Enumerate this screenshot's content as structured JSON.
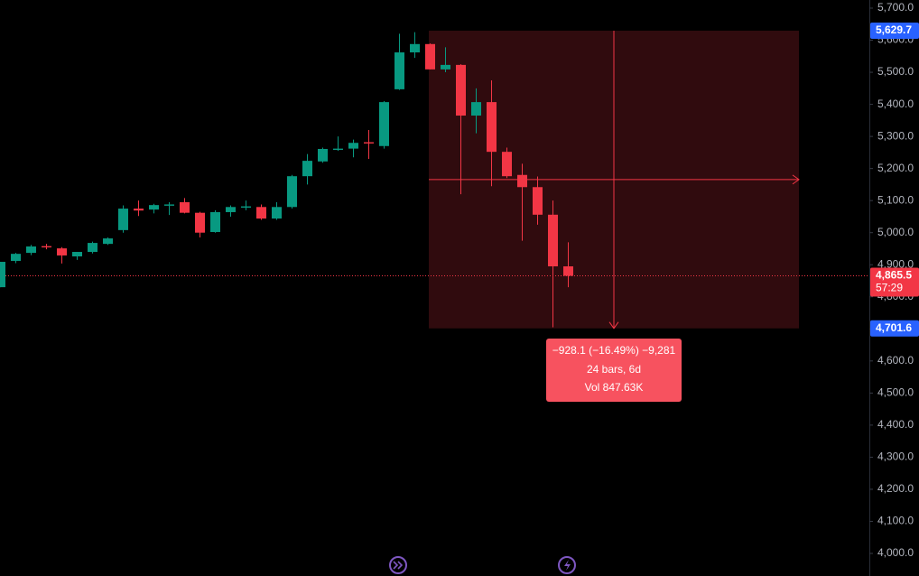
{
  "chart_data": {
    "type": "candlestick",
    "open": [
      4830,
      4912,
      4937,
      4958,
      4951,
      4926,
      4940,
      4965,
      5008,
      5075,
      5072,
      5084,
      5095,
      5062,
      5002,
      5064,
      5078,
      5080,
      5044,
      5080,
      5176,
      5222,
      5258,
      5262,
      5282,
      5270,
      5447,
      5562,
      5588,
      5509,
      5523,
      5365,
      5407,
      5252,
      5180,
      5142,
      5056,
      4895
    ],
    "high": [
      4909,
      4937,
      4962,
      4965,
      4955,
      4940,
      4972,
      4985,
      5085,
      5100,
      5090,
      5095,
      5108,
      5065,
      5070,
      5085,
      5100,
      5088,
      5095,
      5180,
      5245,
      5265,
      5300,
      5290,
      5320,
      5410,
      5620,
      5625,
      5590,
      5578,
      5525,
      5450,
      5475,
      5265,
      5215,
      5175,
      5100,
      4970
    ],
    "low": [
      4830,
      4905,
      4930,
      4948,
      4904,
      4915,
      4935,
      4962,
      5000,
      5052,
      5060,
      5055,
      5060,
      4985,
      5000,
      5050,
      5070,
      5040,
      5040,
      5075,
      5150,
      5218,
      5255,
      5235,
      5230,
      5262,
      5445,
      5545,
      5509,
      5500,
      5120,
      5310,
      5145,
      5170,
      4975,
      5025,
      4705,
      4830
    ],
    "close": [
      4909,
      4934,
      4957,
      4954,
      4929,
      4940,
      4968,
      4982,
      5075,
      5069,
      5086,
      5088,
      5062,
      5000,
      5064,
      5080,
      5082,
      5044,
      5080,
      5176,
      5224,
      5261,
      5262,
      5280,
      5278,
      5407,
      5562,
      5588,
      5509,
      5523,
      5365,
      5407,
      5252,
      5176,
      5142,
      5056,
      4895,
      4865.5
    ],
    "up_color": "#089981",
    "down_color": "#f23645",
    "ylim": [
      4000,
      5700
    ],
    "yticks": [
      {
        "value": 4000,
        "label": "4,000.0"
      },
      {
        "value": 4100,
        "label": "4,100.0"
      },
      {
        "value": 4200,
        "label": "4,200.0"
      },
      {
        "value": 4300,
        "label": "4,300.0"
      },
      {
        "value": 4400,
        "label": "4,400.0"
      },
      {
        "value": 4500,
        "label": "4,500.0"
      },
      {
        "value": 4600,
        "label": "4,600.0"
      },
      {
        "value": 4700,
        "label": "4,700.0"
      },
      {
        "value": 4800,
        "label": "4,800.0"
      },
      {
        "value": 4900,
        "label": "4,900.0"
      },
      {
        "value": 5000,
        "label": "5,000.0"
      },
      {
        "value": 5100,
        "label": "5,100.0"
      },
      {
        "value": 5200,
        "label": "5,200.0"
      },
      {
        "value": 5300,
        "label": "5,300.0"
      },
      {
        "value": 5400,
        "label": "5,400.0"
      },
      {
        "value": 5500,
        "label": "5,500.0"
      },
      {
        "value": 5600,
        "label": "5,600.0"
      },
      {
        "value": 5700,
        "label": "5,700.0"
      }
    ],
    "last_price": {
      "value": 4865.5,
      "label": "4,865.5"
    },
    "countdown": "57:29",
    "range_high": {
      "value": 5629.7,
      "label": "5,629.7"
    },
    "range_low": {
      "value": 4701.6,
      "label": "4,701.6"
    },
    "measure": {
      "change": "−928.1 (−16.49%) −9,281",
      "bars": "24 bars, 6d",
      "volume": "Vol 847.63K"
    }
  }
}
